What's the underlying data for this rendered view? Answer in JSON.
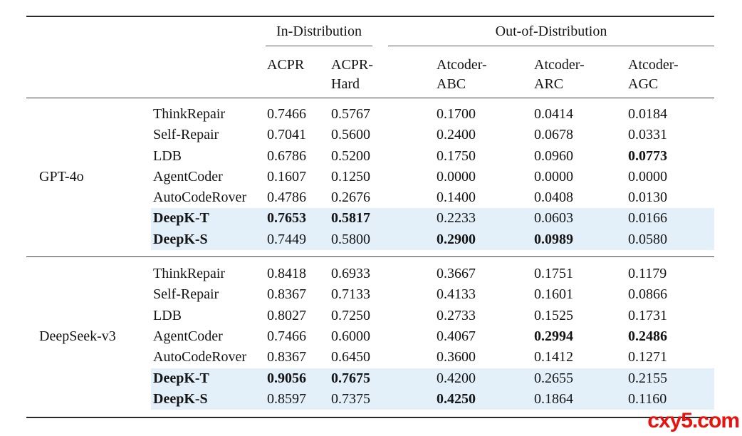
{
  "watermark": {
    "text": "cxy5.com",
    "color": "#e8120e"
  },
  "table": {
    "col_groups": [
      {
        "label": "In-Distribution"
      },
      {
        "label": "Out-of-Distribution"
      }
    ],
    "columns": [
      "ACPR",
      "ACPR-\nHard",
      "Atcoder-\nABC",
      "Atcoder-\nARC",
      "Atcoder-\nAGC"
    ],
    "highlight_color": "#e3f0fa",
    "groups": [
      {
        "model": "GPT-4o",
        "rows": [
          {
            "method": "ThinkRepair",
            "values": [
              "0.7466",
              "0.5767",
              "0.1700",
              "0.0414",
              "0.0184"
            ],
            "bold": [
              false,
              false,
              false,
              false,
              false
            ],
            "bold_method": false,
            "highlight": false
          },
          {
            "method": "Self-Repair",
            "values": [
              "0.7041",
              "0.5600",
              "0.2400",
              "0.0678",
              "0.0331"
            ],
            "bold": [
              false,
              false,
              false,
              false,
              false
            ],
            "bold_method": false,
            "highlight": false
          },
          {
            "method": "LDB",
            "values": [
              "0.6786",
              "0.5200",
              "0.1750",
              "0.0960",
              "0.0773"
            ],
            "bold": [
              false,
              false,
              false,
              false,
              true
            ],
            "bold_method": false,
            "highlight": false
          },
          {
            "method": "AgentCoder",
            "values": [
              "0.1607",
              "0.1250",
              "0.0000",
              "0.0000",
              "0.0000"
            ],
            "bold": [
              false,
              false,
              false,
              false,
              false
            ],
            "bold_method": false,
            "highlight": false
          },
          {
            "method": "AutoCodeRover",
            "values": [
              "0.4786",
              "0.2676",
              "0.1400",
              "0.0408",
              "0.0130"
            ],
            "bold": [
              false,
              false,
              false,
              false,
              false
            ],
            "bold_method": false,
            "highlight": false
          },
          {
            "method": "DeepK-T",
            "values": [
              "0.7653",
              "0.5817",
              "0.2233",
              "0.0603",
              "0.0166"
            ],
            "bold": [
              true,
              true,
              false,
              false,
              false
            ],
            "bold_method": true,
            "highlight": true
          },
          {
            "method": "DeepK-S",
            "values": [
              "0.7449",
              "0.5800",
              "0.2900",
              "0.0989",
              "0.0580"
            ],
            "bold": [
              false,
              false,
              true,
              true,
              false
            ],
            "bold_method": true,
            "highlight": true
          }
        ]
      },
      {
        "model": "DeepSeek-v3",
        "rows": [
          {
            "method": "ThinkRepair",
            "values": [
              "0.8418",
              "0.6933",
              "0.3667",
              "0.1751",
              "0.1179"
            ],
            "bold": [
              false,
              false,
              false,
              false,
              false
            ],
            "bold_method": false,
            "highlight": false
          },
          {
            "method": "Self-Repair",
            "values": [
              "0.8367",
              "0.7133",
              "0.4133",
              "0.1601",
              "0.0866"
            ],
            "bold": [
              false,
              false,
              false,
              false,
              false
            ],
            "bold_method": false,
            "highlight": false
          },
          {
            "method": "LDB",
            "values": [
              "0.8027",
              "0.7250",
              "0.2733",
              "0.1525",
              "0.1731"
            ],
            "bold": [
              false,
              false,
              false,
              false,
              false
            ],
            "bold_method": false,
            "highlight": false
          },
          {
            "method": "AgentCoder",
            "values": [
              "0.7466",
              "0.6000",
              "0.4067",
              "0.2994",
              "0.2486"
            ],
            "bold": [
              false,
              false,
              false,
              true,
              true
            ],
            "bold_method": false,
            "highlight": false
          },
          {
            "method": "AutoCodeRover",
            "values": [
              "0.8367",
              "0.6450",
              "0.3600",
              "0.1412",
              "0.1271"
            ],
            "bold": [
              false,
              false,
              false,
              false,
              false
            ],
            "bold_method": false,
            "highlight": false
          },
          {
            "method": "DeepK-T",
            "values": [
              "0.9056",
              "0.7675",
              "0.4200",
              "0.2655",
              "0.2155"
            ],
            "bold": [
              true,
              true,
              false,
              false,
              false
            ],
            "bold_method": true,
            "highlight": true
          },
          {
            "method": "DeepK-S",
            "values": [
              "0.8597",
              "0.7375",
              "0.4250",
              "0.1864",
              "0.1160"
            ],
            "bold": [
              false,
              false,
              true,
              false,
              false
            ],
            "bold_method": true,
            "highlight": true
          }
        ]
      }
    ]
  }
}
